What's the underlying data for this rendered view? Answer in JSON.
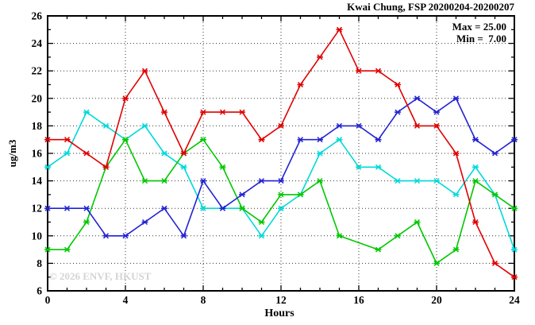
{
  "title": "Kwai Chung, FSP 20200204-20200207",
  "legend": {
    "max_label": "Max = 25.00",
    "min_label": "Min =  7.00"
  },
  "watermark": "© 2026 ENVF, HKUST",
  "chart_data": {
    "type": "line",
    "title": "Kwai Chung, FSP 20200204-20200207",
    "xlabel": "Hours",
    "ylabel": "ug/m3",
    "xlim": [
      0,
      24
    ],
    "ylim": [
      6,
      26
    ],
    "xticks": [
      0,
      4,
      8,
      12,
      16,
      20,
      24
    ],
    "yticks": [
      6,
      8,
      10,
      12,
      14,
      16,
      18,
      20,
      22,
      24,
      26
    ],
    "grid": true,
    "legend_position": "top-right-inside",
    "x": [
      0,
      1,
      2,
      3,
      4,
      5,
      6,
      7,
      8,
      9,
      10,
      11,
      12,
      13,
      14,
      15,
      16,
      17,
      18,
      19,
      20,
      21,
      22,
      23,
      24
    ],
    "series": [
      {
        "name": "cyan",
        "color": "#00d9d9",
        "values": [
          15,
          16,
          19,
          18,
          17,
          18,
          16,
          15,
          12,
          12,
          12,
          10,
          12,
          13,
          16,
          17,
          15,
          15,
          14,
          14,
          14,
          13,
          15,
          13,
          9
        ]
      },
      {
        "name": "green",
        "color": "#00c800",
        "values": [
          9,
          9,
          11,
          15,
          17,
          14,
          14,
          16,
          17,
          15,
          12,
          11,
          13,
          13,
          14,
          10,
          null,
          9,
          10,
          11,
          8,
          9,
          14,
          13,
          12
        ]
      },
      {
        "name": "blue",
        "color": "#2222d4",
        "values": [
          12,
          12,
          12,
          10,
          10,
          11,
          12,
          10,
          14,
          12,
          13,
          14,
          14,
          17,
          17,
          18,
          18,
          17,
          19,
          20,
          19,
          20,
          17,
          16,
          17
        ]
      },
      {
        "name": "red",
        "color": "#e00000",
        "values": [
          17,
          17,
          16,
          15,
          20,
          22,
          19,
          16,
          19,
          19,
          19,
          17,
          18,
          21,
          23,
          25,
          22,
          22,
          21,
          18,
          18,
          16,
          11,
          8,
          7
        ]
      }
    ],
    "stats": {
      "max": 25.0,
      "min": 7.0
    }
  }
}
